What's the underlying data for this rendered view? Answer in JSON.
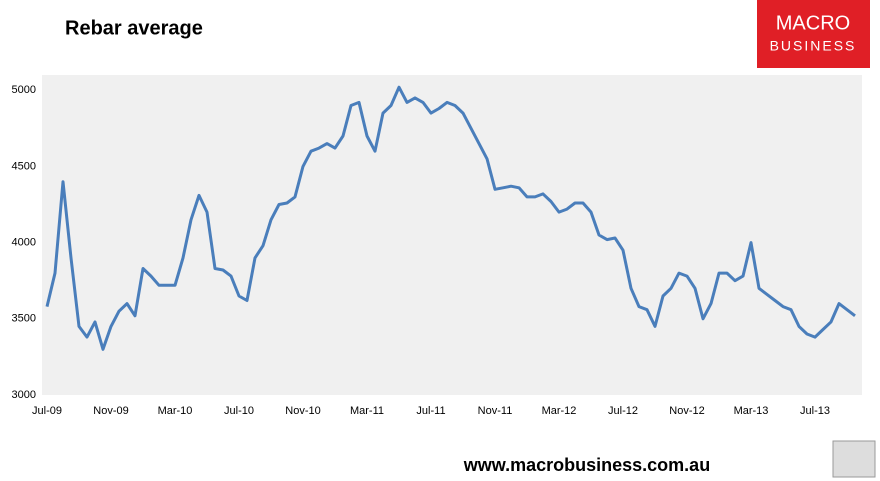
{
  "chart_data": {
    "type": "line",
    "title": "Rebar average",
    "categories": [
      "Jul-09",
      null,
      null,
      null,
      null,
      null,
      null,
      null,
      "Nov-09",
      null,
      null,
      null,
      null,
      null,
      null,
      null,
      "Mar-10",
      null,
      null,
      null,
      null,
      null,
      null,
      null,
      "Jul-10",
      null,
      null,
      null,
      null,
      null,
      null,
      null,
      "Nov-10",
      null,
      null,
      null,
      null,
      null,
      null,
      null,
      "Mar-11",
      null,
      null,
      null,
      null,
      null,
      null,
      null,
      "Jul-11",
      null,
      null,
      null,
      null,
      null,
      null,
      null,
      "Nov-11",
      null,
      null,
      null,
      null,
      null,
      null,
      null,
      "Mar-12",
      null,
      null,
      null,
      null,
      null,
      null,
      null,
      "Jul-12",
      null,
      null,
      null,
      null,
      null,
      null,
      null,
      "Nov-12",
      null,
      null,
      null,
      null,
      null,
      null,
      null,
      "Mar-13",
      null,
      null,
      null,
      null,
      null,
      null,
      null,
      "Jul-13",
      null,
      null,
      null,
      null,
      null
    ],
    "values": [
      3580,
      3800,
      4400,
      3900,
      3450,
      3380,
      3480,
      3300,
      3450,
      3550,
      3600,
      3520,
      3830,
      3780,
      3720,
      3720,
      3720,
      3900,
      4150,
      4310,
      4200,
      3830,
      3820,
      3780,
      3650,
      3620,
      3900,
      3980,
      4150,
      4250,
      4260,
      4300,
      4500,
      4600,
      4620,
      4650,
      4620,
      4700,
      4900,
      4920,
      4700,
      4600,
      4850,
      4900,
      5020,
      4920,
      4950,
      4920,
      4850,
      4880,
      4920,
      4900,
      4850,
      4750,
      4650,
      4550,
      4350,
      4360,
      4370,
      4360,
      4300,
      4300,
      4320,
      4270,
      4200,
      4220,
      4260,
      4260,
      4200,
      4050,
      4020,
      4030,
      3950,
      3700,
      3580,
      3560,
      3450,
      3650,
      3700,
      3800,
      3780,
      3700,
      3500,
      3600,
      3800,
      3800,
      3750,
      3780,
      4000,
      3700,
      3660,
      3620,
      3580,
      3560,
      3450,
      3400,
      3380,
      3430,
      3480,
      3600,
      3560,
      3520
    ],
    "color": "#4a7ebb",
    "ylim": [
      3000,
      5100
    ],
    "yticks": [
      3000,
      3500,
      4000,
      4500,
      5000
    ],
    "grid": false
  },
  "branding": {
    "logo_top": "MACRO",
    "logo_bottom": "BUSINESS",
    "url": "www.macrobusiness.com.au"
  }
}
